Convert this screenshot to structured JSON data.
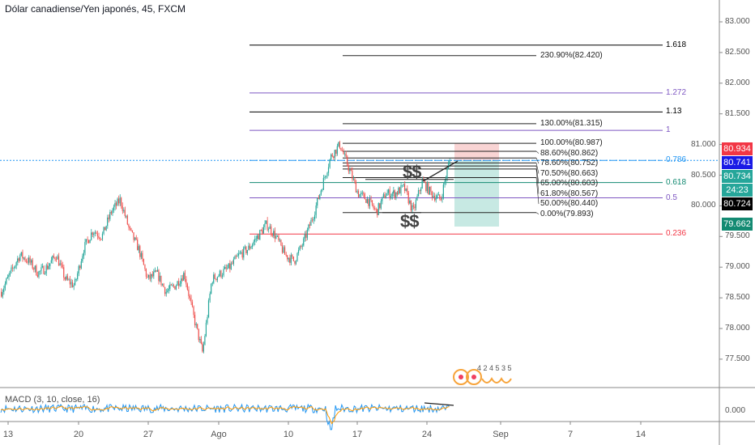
{
  "header": {
    "title": "Dólar canadiense/Yen japonés, 45, FXCM"
  },
  "price_axis": {
    "labels": [
      "83.000",
      "82.500",
      "82.000",
      "81.500",
      "81.000",
      "80.500",
      "80.000",
      "79.500",
      "79.000",
      "78.500",
      "78.000",
      "77.500"
    ],
    "values": [
      83.0,
      82.5,
      82.0,
      81.5,
      81.0,
      80.5,
      80.0,
      79.5,
      79.0,
      78.5,
      78.0,
      77.5
    ],
    "tags": [
      {
        "text": "80.934",
        "value": 80.934,
        "color": "#f23645"
      },
      {
        "text": "80.741",
        "value": 80.741,
        "color": "#1a1ae6"
      },
      {
        "text": "80.734",
        "value": 80.734,
        "color": "#26a69a"
      },
      {
        "text": "24:23",
        "value": 80.62,
        "color": "#26a69a"
      },
      {
        "text": "80.724",
        "value": 80.49,
        "color": "#000000"
      },
      {
        "text": "79.662",
        "value": 79.662,
        "color": "#138a72"
      }
    ]
  },
  "time_axis": {
    "labels": [
      "13",
      "20",
      "27",
      "Ago",
      "10",
      "17",
      "24",
      "Sep",
      "7",
      "14"
    ]
  },
  "fib_left": [
    {
      "ratio": "1.618",
      "value": 82.62,
      "color": "#000000"
    },
    {
      "ratio": "1.272",
      "value": 81.84,
      "color": "#7e57c2"
    },
    {
      "ratio": "1.13",
      "value": 81.53,
      "color": "#000000"
    },
    {
      "ratio": "1",
      "value": 81.23,
      "color": "#7e57c2"
    },
    {
      "ratio": "0.786",
      "value": 80.741,
      "color": "#2196f3"
    },
    {
      "ratio": "0.618",
      "value": 80.38,
      "color": "#138a72"
    },
    {
      "ratio": "0.5",
      "value": 80.13,
      "color": "#7e57c2"
    },
    {
      "ratio": "0.236",
      "value": 79.54,
      "color": "#f23645"
    }
  ],
  "fib_right": [
    {
      "label": "230.90%(82.420)",
      "value": 82.45
    },
    {
      "label": "130.00%(81.315)",
      "value": 81.34
    },
    {
      "label": "100.00%(80.987)",
      "value": 81.02
    },
    {
      "label": "88.60%(80.862)",
      "value": 80.89
    },
    {
      "label": "78.60%(80.752)",
      "value": 80.78
    },
    {
      "label": "70.50%(80.663)",
      "value": 80.7
    },
    {
      "label": "65.00%(80.603)",
      "value": 80.65
    },
    {
      "label": "61.80%(80.567)",
      "value": 80.6
    },
    {
      "label": "50.00%(80.440)",
      "value": 80.46
    },
    {
      "label": "0.00%(79.893)",
      "value": 79.89
    }
  ],
  "annotations": {
    "dollar_top": "$$",
    "dollar_bottom": "$$",
    "watermark_digits": "4 2 4 5 3 5"
  },
  "position": {
    "entry": 80.741,
    "stop": 80.987,
    "target": 79.662
  },
  "price_path": [
    78.6,
    78.9,
    79.2,
    79.1,
    78.9,
    79.0,
    79.2,
    78.8,
    78.7,
    79.3,
    79.6,
    79.5,
    79.9,
    80.1,
    79.6,
    79.3,
    78.8,
    78.9,
    78.6,
    78.7,
    78.9,
    78.2,
    77.6,
    78.8,
    78.9,
    79.0,
    79.2,
    79.3,
    79.5,
    79.7,
    79.5,
    79.2,
    79.1,
    79.4,
    79.8,
    80.3,
    80.8,
    81.0,
    80.6,
    80.2,
    80.1,
    79.9,
    80.2,
    80.2,
    80.3,
    79.9,
    80.4,
    80.2,
    80.1,
    80.74
  ],
  "macd": {
    "label": "MACD (3, 10, close, 16)",
    "zero_label": "0.000"
  },
  "colors": {
    "up": "#26a69a",
    "down": "#ef5350",
    "macd": "#2196f3",
    "signal": "#ff9800"
  }
}
